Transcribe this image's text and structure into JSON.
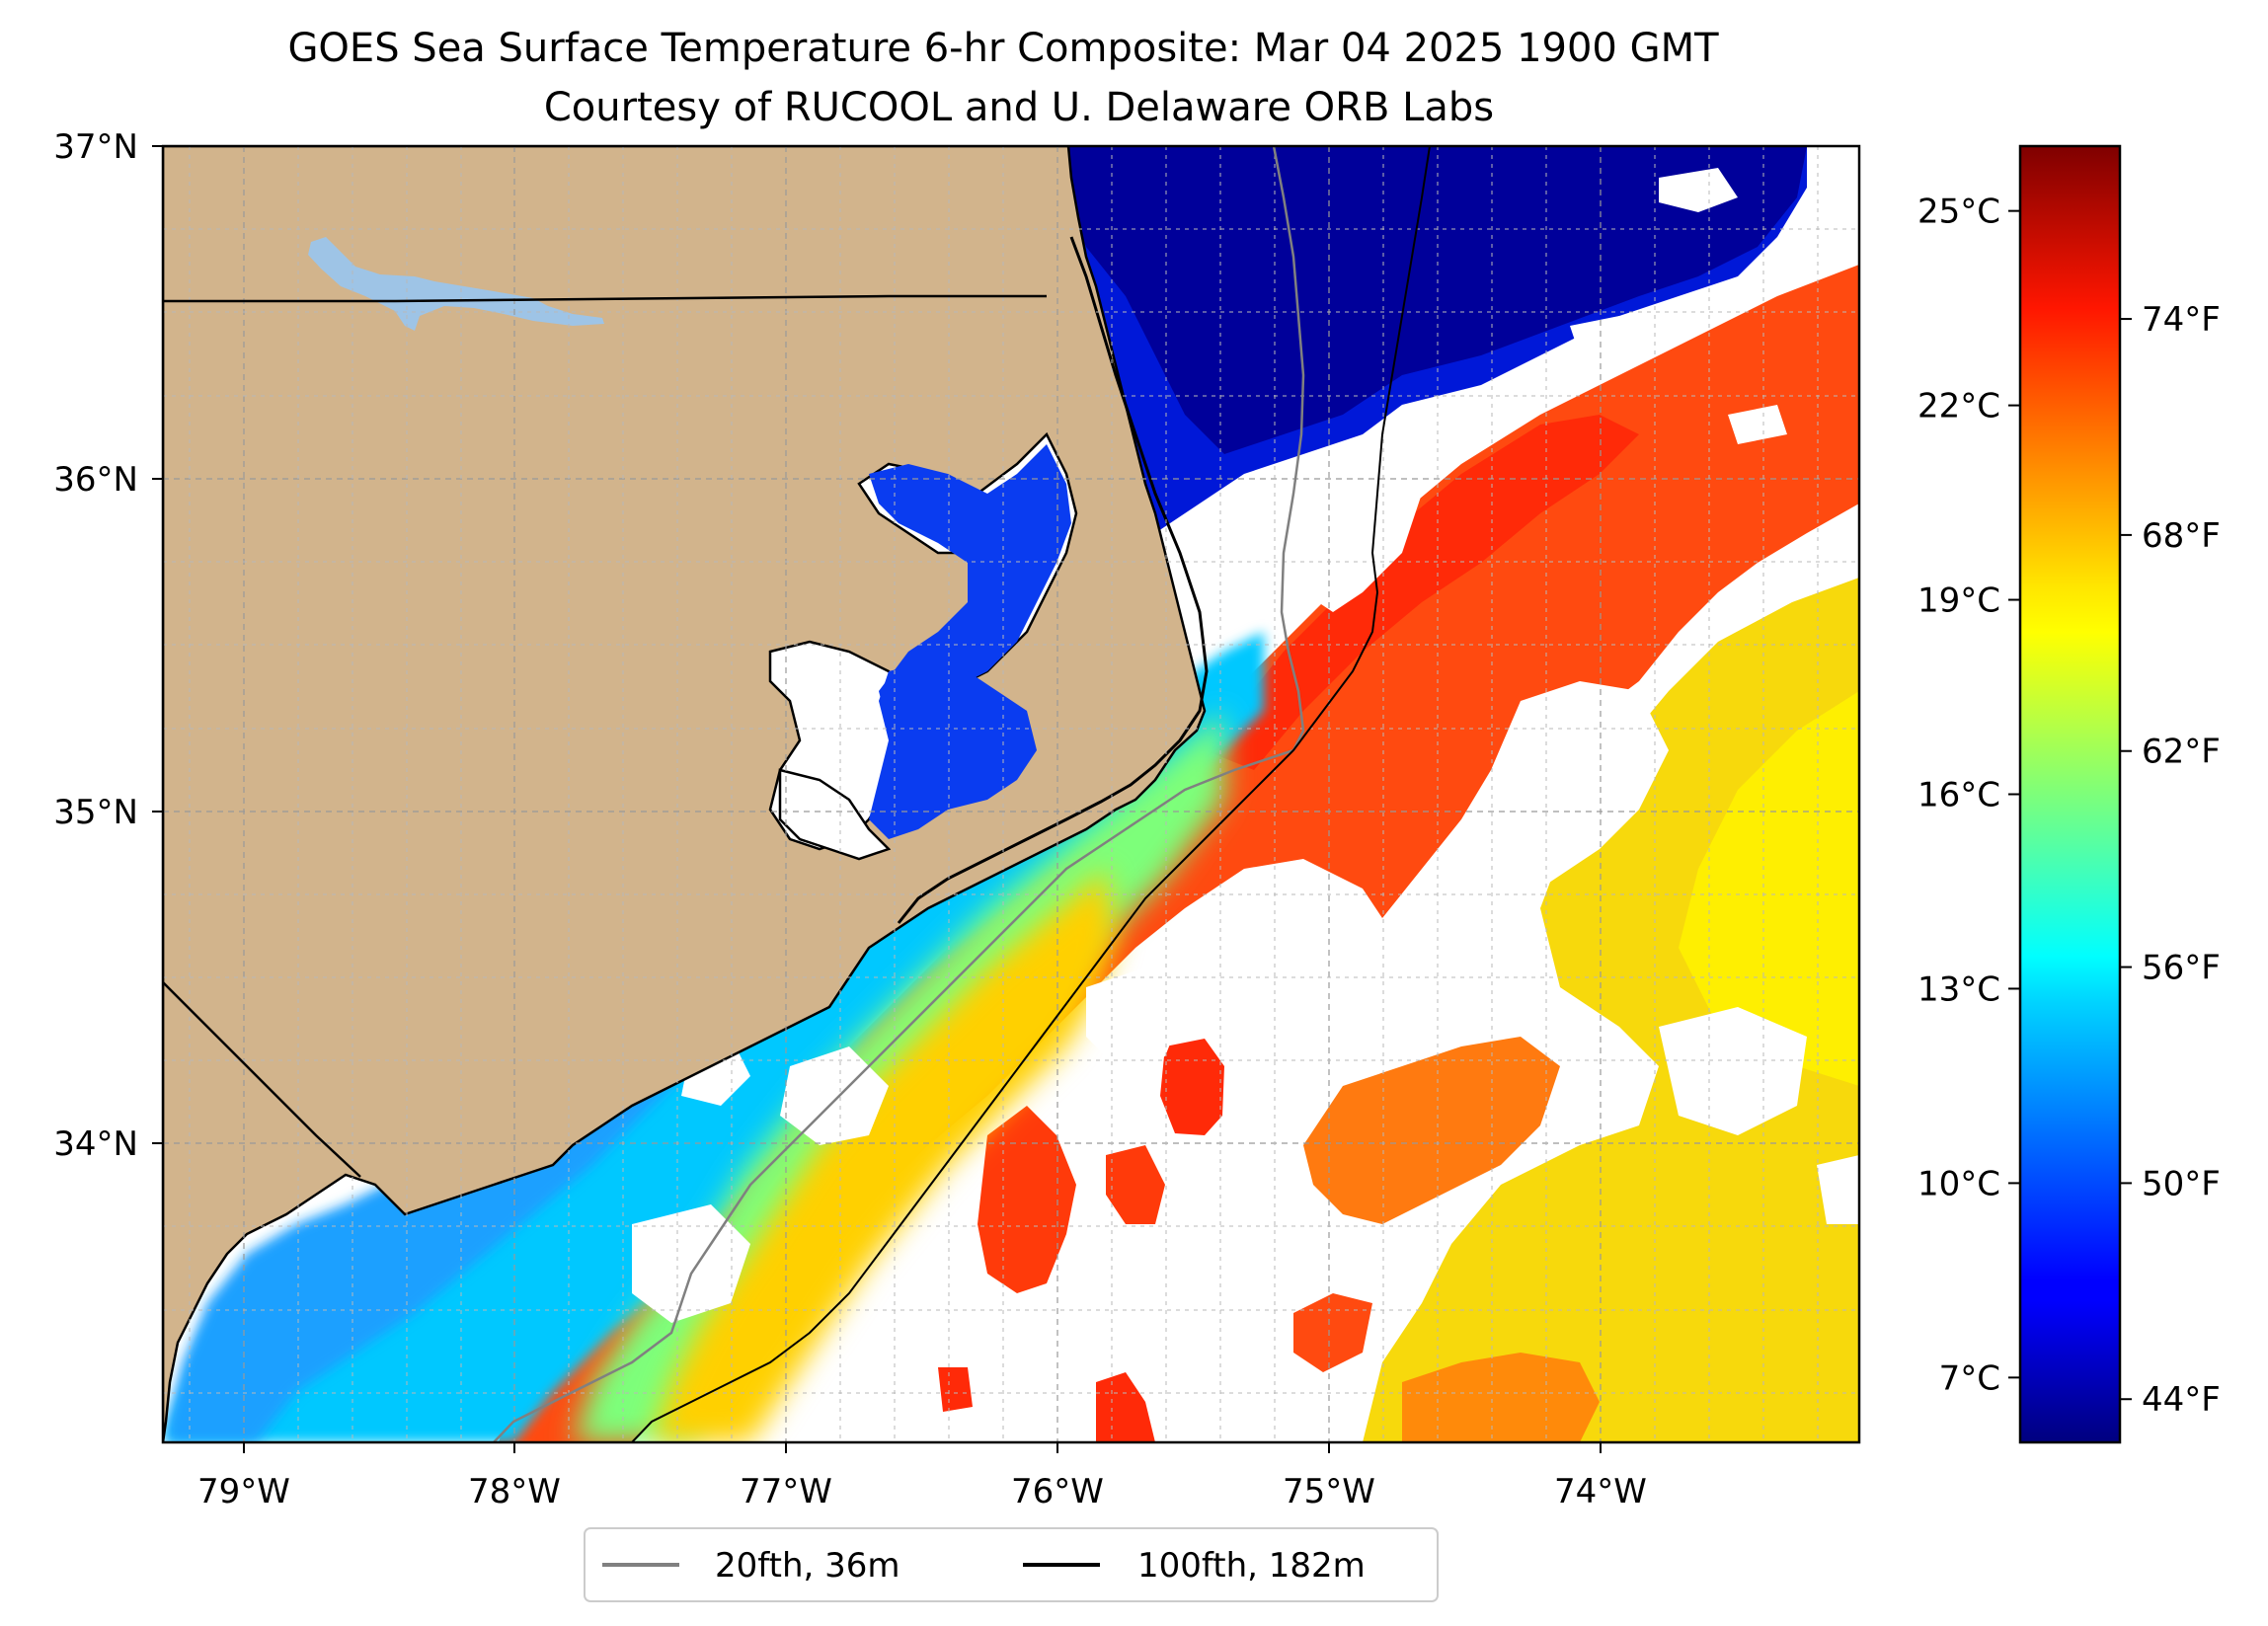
{
  "title": {
    "line1": "GOES Sea Surface Temperature 6-hr Composite: Mar 04 2025 1900 GMT",
    "line2": "Courtesy of RUCOOL and U. Delaware ORB Labs"
  },
  "map": {
    "lon_range": [
      -79.3,
      -73.05
    ],
    "lat_range": [
      33.1,
      37.0
    ],
    "land_color": "#d2b48c",
    "lake_color": "#9ec4e6",
    "no_data_color": "#ffffff",
    "gridlines": true,
    "lon_ticks": [
      {
        "value": -79,
        "label": "79°W"
      },
      {
        "value": -78,
        "label": "78°W"
      },
      {
        "value": -77,
        "label": "77°W"
      },
      {
        "value": -76,
        "label": "76°W"
      },
      {
        "value": -75,
        "label": "75°W"
      },
      {
        "value": -74,
        "label": "74°W"
      }
    ],
    "lat_ticks": [
      {
        "value": 37,
        "label": "37°N"
      },
      {
        "value": 36,
        "label": "36°N"
      },
      {
        "value": 35,
        "label": "35°N"
      },
      {
        "value": 34,
        "label": "34°N"
      }
    ]
  },
  "colorbar": {
    "colormap": "jet",
    "range_f": [
      42.8,
      78.8
    ],
    "celsius_ticks": [
      {
        "value": 25,
        "label": "25°C"
      },
      {
        "value": 22,
        "label": "22°C"
      },
      {
        "value": 19,
        "label": "19°C"
      },
      {
        "value": 16,
        "label": "16°C"
      },
      {
        "value": 13,
        "label": "13°C"
      },
      {
        "value": 10,
        "label": "10°C"
      },
      {
        "value": 7,
        "label": "7°C"
      }
    ],
    "fahrenheit_ticks": [
      {
        "value": 74,
        "label": "74°F"
      },
      {
        "value": 68,
        "label": "68°F"
      },
      {
        "value": 62,
        "label": "62°F"
      },
      {
        "value": 56,
        "label": "56°F"
      },
      {
        "value": 50,
        "label": "50°F"
      },
      {
        "value": 44,
        "label": "44°F"
      }
    ]
  },
  "legend": {
    "location": "below map",
    "items": [
      {
        "label": "20fth, 36m",
        "color": "#808080"
      },
      {
        "label": "100fth, 182m",
        "color": "#000000"
      }
    ]
  }
}
